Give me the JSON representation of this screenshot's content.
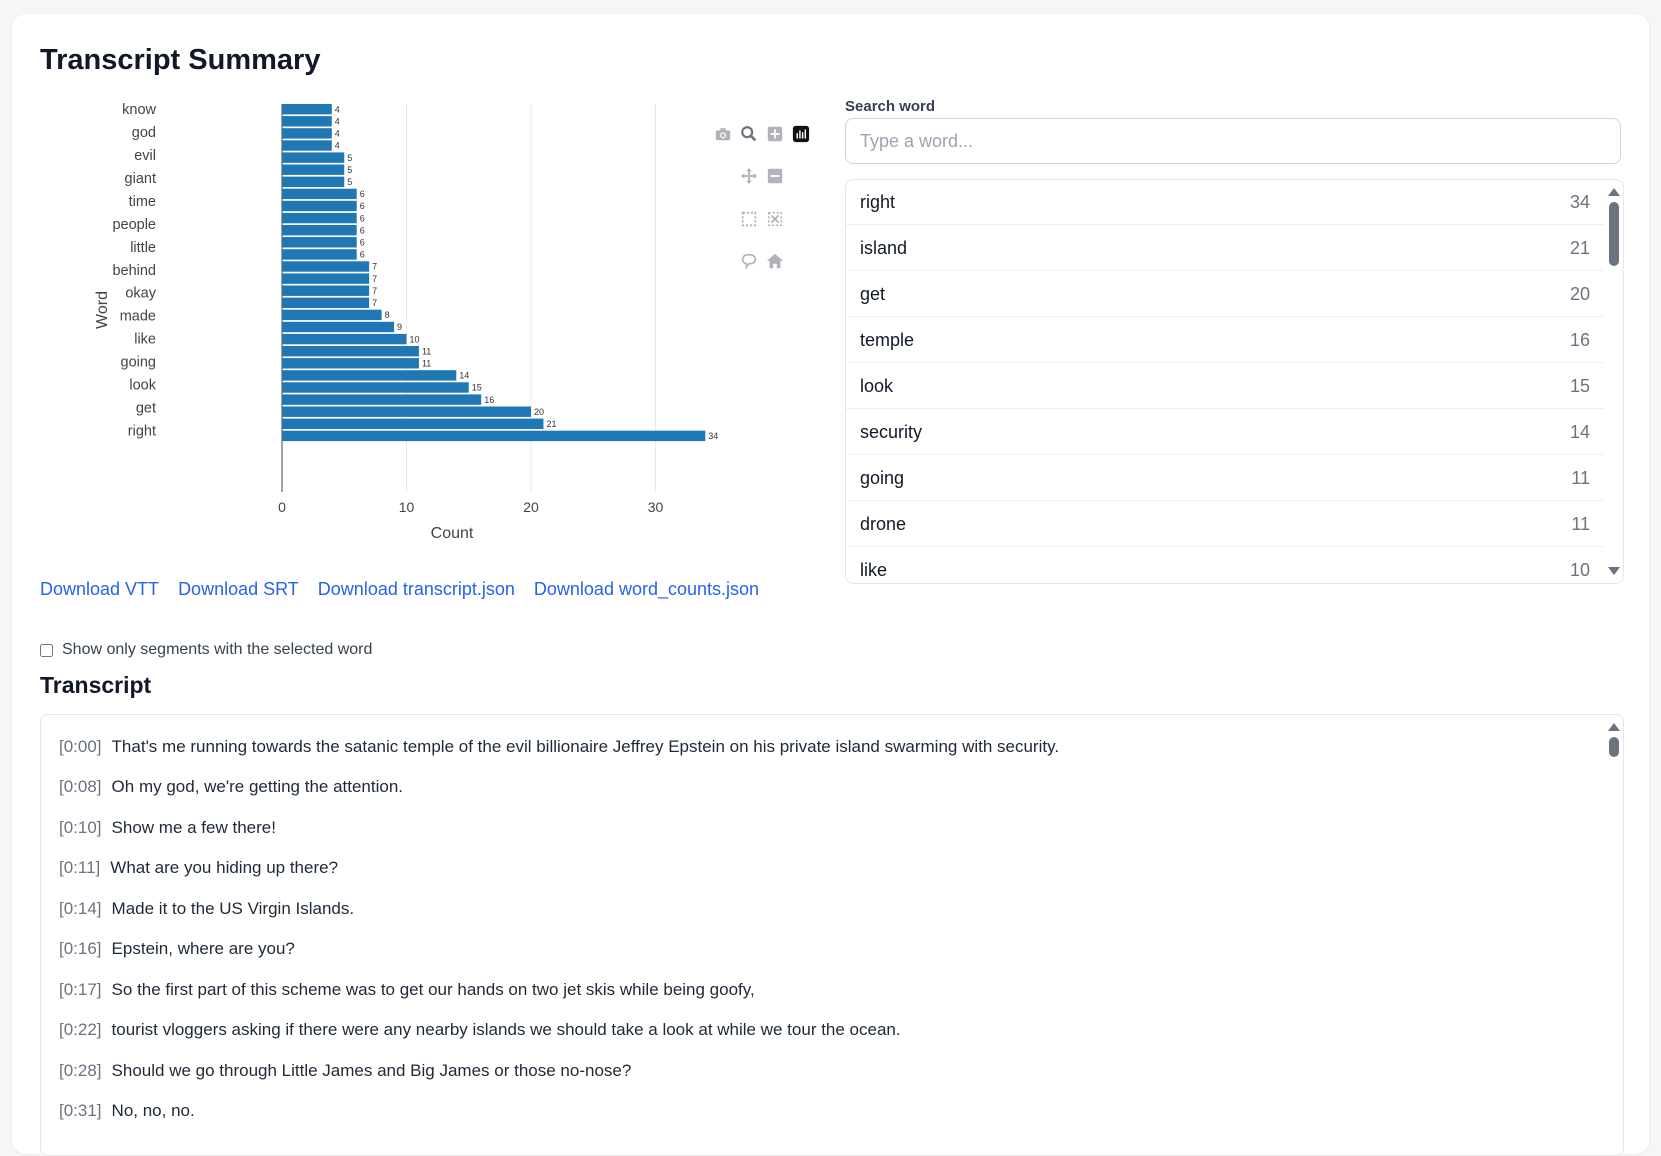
{
  "page": {
    "title": "Transcript Summary"
  },
  "chart_data": {
    "type": "bar",
    "orientation": "horizontal",
    "xlabel": "Count",
    "ylabel": "Word",
    "xlim": [
      0,
      36
    ],
    "xticks": [
      0,
      10,
      20,
      30
    ],
    "bar_color": "#1f77b4",
    "grid": true,
    "y_tick_labels": [
      "know",
      "god",
      "evil",
      "giant",
      "time",
      "people",
      "little",
      "behind",
      "okay",
      "made",
      "like",
      "going",
      "look",
      "get",
      "right"
    ],
    "values": [
      4,
      4,
      4,
      4,
      5,
      5,
      5,
      6,
      6,
      6,
      6,
      6,
      6,
      7,
      7,
      7,
      7,
      8,
      9,
      10,
      11,
      11,
      14,
      15,
      16,
      20,
      21,
      34
    ]
  },
  "modebar": {
    "icons": [
      "camera-icon",
      "zoom-icon",
      "zoom-in-icon",
      "plotly-logo-icon",
      "pan-icon",
      "zoom-out-icon",
      "box-select-icon",
      "autoscale-icon",
      "hover-icon",
      "home-icon"
    ]
  },
  "downloads": [
    {
      "label": "Download VTT"
    },
    {
      "label": "Download SRT"
    },
    {
      "label": "Download transcript.json"
    },
    {
      "label": "Download word_counts.json"
    }
  ],
  "search": {
    "label": "Search word",
    "placeholder": "Type a word..."
  },
  "word_counts": [
    {
      "word": "right",
      "count": "34"
    },
    {
      "word": "island",
      "count": "21"
    },
    {
      "word": "get",
      "count": "20"
    },
    {
      "word": "temple",
      "count": "16"
    },
    {
      "word": "look",
      "count": "15"
    },
    {
      "word": "security",
      "count": "14"
    },
    {
      "word": "going",
      "count": "11"
    },
    {
      "word": "drone",
      "count": "11"
    },
    {
      "word": "like",
      "count": "10"
    }
  ],
  "filter": {
    "label": "Show only segments with the selected word",
    "checked": false
  },
  "transcript": {
    "title": "Transcript",
    "segments": [
      {
        "ts": "[0:00]",
        "text": "That's me running towards the satanic temple of the evil billionaire Jeffrey Epstein on his private island swarming with security."
      },
      {
        "ts": "[0:08]",
        "text": "Oh my god, we're getting the attention."
      },
      {
        "ts": "[0:10]",
        "text": "Show me a few there!"
      },
      {
        "ts": "[0:11]",
        "text": "What are you hiding up there?"
      },
      {
        "ts": "[0:14]",
        "text": "Made it to the US Virgin Islands."
      },
      {
        "ts": "[0:16]",
        "text": "Epstein, where are you?"
      },
      {
        "ts": "[0:17]",
        "text": "So the first part of this scheme was to get our hands on two jet skis while being goofy,"
      },
      {
        "ts": "[0:22]",
        "text": "tourist vloggers asking if there were any nearby islands we should take a look at while we tour the ocean."
      },
      {
        "ts": "[0:28]",
        "text": "Should we go through Little James and Big James or those no-nose?"
      },
      {
        "ts": "[0:31]",
        "text": "No, no, no."
      }
    ]
  }
}
